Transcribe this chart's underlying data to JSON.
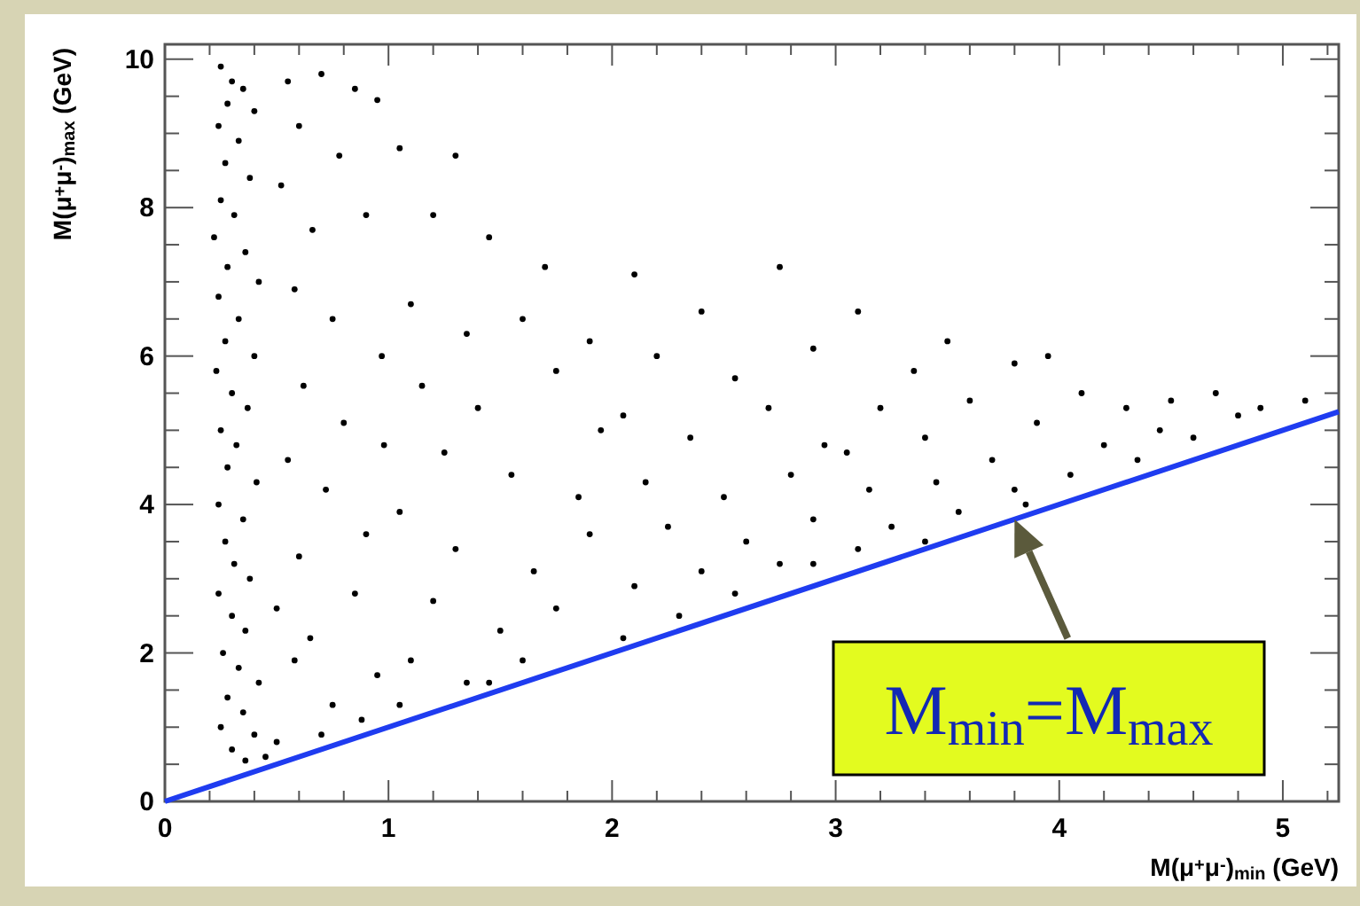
{
  "chart_data": {
    "type": "scatter",
    "xlabel": "M(μ$^{+}$μ$^{-}$)$_{min}$ (GeV)",
    "ylabel": "M(μ$^{+}$μ$^{-}$)$_{max}$ (GeV)",
    "xlim": [
      0,
      5.25
    ],
    "ylim": [
      0,
      10.2
    ],
    "xticks": [
      0,
      {
        "value": 0.2,
        "label": null
      },
      {
        "value": 0.4,
        "label": null
      },
      {
        "value": 0.6,
        "label": null
      },
      {
        "value": 0.8,
        "label": null
      },
      1,
      {
        "value": 1.2,
        "label": null
      },
      {
        "value": 1.4,
        "label": null
      },
      {
        "value": 1.6,
        "label": null
      },
      {
        "value": 1.8,
        "label": null
      },
      2,
      {
        "value": 2.2,
        "label": null
      },
      {
        "value": 2.4,
        "label": null
      },
      {
        "value": 2.6,
        "label": null
      },
      {
        "value": 2.8,
        "label": null
      },
      3,
      {
        "value": 3.2,
        "label": null
      },
      {
        "value": 3.4,
        "label": null
      },
      {
        "value": 3.6,
        "label": null
      },
      {
        "value": 3.8,
        "label": null
      },
      4,
      {
        "value": 4.2,
        "label": null
      },
      {
        "value": 4.4,
        "label": null
      },
      {
        "value": 4.6,
        "label": null
      },
      {
        "value": 4.8,
        "label": null
      },
      5,
      {
        "value": 5.2,
        "label": null
      }
    ],
    "yticks": [
      0,
      {
        "value": 0.5,
        "label": null
      },
      {
        "value": 1,
        "label": null
      },
      {
        "value": 1.5,
        "label": null
      },
      2,
      {
        "value": 2.5,
        "label": null
      },
      {
        "value": 3,
        "label": null
      },
      {
        "value": 3.5,
        "label": null
      },
      4,
      {
        "value": 4.5,
        "label": null
      },
      {
        "value": 5,
        "label": null
      },
      {
        "value": 5.5,
        "label": null
      },
      6,
      {
        "value": 6.5,
        "label": null
      },
      {
        "value": 7,
        "label": null
      },
      {
        "value": 7.5,
        "label": null
      },
      8,
      {
        "value": 8.5,
        "label": null
      },
      {
        "value": 9,
        "label": null
      },
      {
        "value": 9.5,
        "label": null
      },
      10
    ],
    "series": [
      {
        "type": "scatter",
        "color": "#000000",
        "marker": "circle",
        "x": [
          0.25,
          0.3,
          0.35,
          0.28,
          0.4,
          0.24,
          0.33,
          0.27,
          0.38,
          0.25,
          0.31,
          0.22,
          0.36,
          0.28,
          0.42,
          0.24,
          0.33,
          0.27,
          0.4,
          0.23,
          0.3,
          0.37,
          0.25,
          0.32,
          0.28,
          0.41,
          0.24,
          0.35,
          0.27,
          0.31,
          0.38,
          0.24,
          0.3,
          0.36,
          0.26,
          0.33,
          0.42,
          0.28,
          0.35,
          0.25,
          0.4,
          0.3,
          0.36,
          0.45,
          0.5,
          0.55,
          0.7,
          0.85,
          0.6,
          0.78,
          0.95,
          0.52,
          0.66,
          0.9,
          0.58,
          0.75,
          0.97,
          0.62,
          0.8,
          0.55,
          0.72,
          0.9,
          0.6,
          0.85,
          0.65,
          0.95,
          0.75,
          0.58,
          0.88,
          0.7,
          0.98,
          0.5,
          1.05,
          1.3,
          1.2,
          1.45,
          1.7,
          1.1,
          1.35,
          1.6,
          1.9,
          1.15,
          1.4,
          1.75,
          1.95,
          1.25,
          1.55,
          1.85,
          1.05,
          1.3,
          1.65,
          1.9,
          1.2,
          1.5,
          1.75,
          1.1,
          1.35,
          1.05,
          1.6,
          1.45,
          2.1,
          2.4,
          2.75,
          2.2,
          2.55,
          2.9,
          2.05,
          2.35,
          2.7,
          2.95,
          2.15,
          2.5,
          2.8,
          2.25,
          2.6,
          2.9,
          2.1,
          2.4,
          2.75,
          2.3,
          2.05,
          2.55,
          2.9,
          3.1,
          3.35,
          3.5,
          3.8,
          3.95,
          3.2,
          3.6,
          3.9,
          3.05,
          3.4,
          3.7,
          3.15,
          3.45,
          3.8,
          3.25,
          3.55,
          3.1,
          3.85,
          3.4,
          4.1,
          4.3,
          4.5,
          4.7,
          4.2,
          4.45,
          4.05,
          4.6,
          4.9,
          5.1,
          4.35,
          4.8
        ],
        "values": [
          9.9,
          9.7,
          9.6,
          9.4,
          9.3,
          9.1,
          8.9,
          8.6,
          8.4,
          8.1,
          7.9,
          7.6,
          7.4,
          7.2,
          7.0,
          6.8,
          6.5,
          6.2,
          6.0,
          5.8,
          5.5,
          5.3,
          5.0,
          4.8,
          4.5,
          4.3,
          4.0,
          3.8,
          3.5,
          3.2,
          3.0,
          2.8,
          2.5,
          2.3,
          2.0,
          1.8,
          1.6,
          1.4,
          1.2,
          1.0,
          0.9,
          0.7,
          0.55,
          0.6,
          0.8,
          9.7,
          9.8,
          9.6,
          9.1,
          8.7,
          9.45,
          8.3,
          7.7,
          7.9,
          6.9,
          6.5,
          6.0,
          5.6,
          5.1,
          4.6,
          4.2,
          3.6,
          3.3,
          2.8,
          2.2,
          1.7,
          1.3,
          1.9,
          1.1,
          0.9,
          4.8,
          2.6,
          8.8,
          8.7,
          7.9,
          7.6,
          7.2,
          6.7,
          6.3,
          6.5,
          6.2,
          5.6,
          5.3,
          5.8,
          5.0,
          4.7,
          4.4,
          4.1,
          3.9,
          3.4,
          3.1,
          3.6,
          2.7,
          2.3,
          2.6,
          1.9,
          1.6,
          1.3,
          1.9,
          1.6,
          7.1,
          6.6,
          7.2,
          6.0,
          5.7,
          6.1,
          5.2,
          4.9,
          5.3,
          4.8,
          4.3,
          4.1,
          4.4,
          3.7,
          3.5,
          3.8,
          2.9,
          3.1,
          3.2,
          2.5,
          2.2,
          2.8,
          3.2,
          6.6,
          5.8,
          6.2,
          5.9,
          6.0,
          5.3,
          5.4,
          5.1,
          4.7,
          4.9,
          4.6,
          4.2,
          4.3,
          4.2,
          3.7,
          3.9,
          3.4,
          4.0,
          3.5,
          5.5,
          5.3,
          5.4,
          5.5,
          4.8,
          5.0,
          4.4,
          4.9,
          5.3,
          5.4,
          4.6,
          5.2
        ]
      },
      {
        "type": "line",
        "color": "#1f3cf0",
        "marker": "none",
        "line_style": "solid",
        "x": [
          0,
          5.25
        ],
        "values": [
          0,
          5.25
        ]
      }
    ],
    "annotations": [
      {
        "text": "M$_{min}$=M$_{max}$",
        "x": 3.8,
        "y": 3.8
      }
    ]
  }
}
